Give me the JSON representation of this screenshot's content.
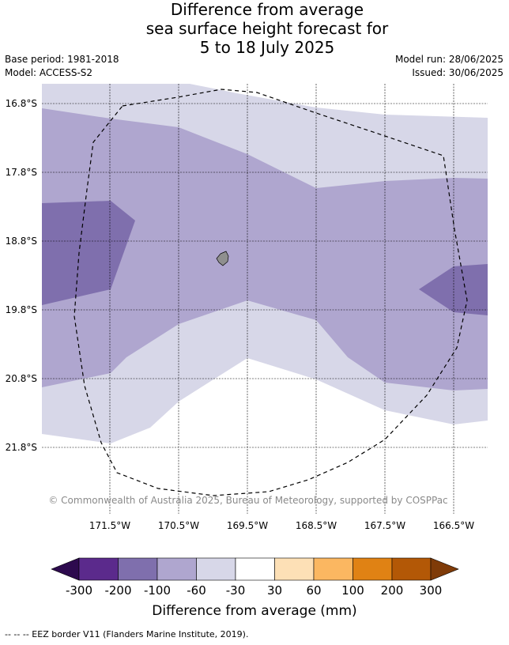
{
  "title": {
    "line1": "Difference from average",
    "line2": "sea surface height forecast for",
    "line3": "5 to 18 July 2025"
  },
  "meta": {
    "base_period": "Base period: 1981-2018",
    "model": "Model: ACCESS-S2",
    "model_run": "Model run: 28/06/2025",
    "issued": "Issued: 30/06/2025"
  },
  "map": {
    "lat_labels": [
      "16.8°S",
      "17.8°S",
      "18.8°S",
      "19.8°S",
      "20.8°S",
      "21.8°S"
    ],
    "lon_labels": [
      "171.5°W",
      "170.5°W",
      "169.5°W",
      "168.5°W",
      "167.5°W",
      "166.5°W"
    ],
    "copyright": "© Commonwealth of Australia 2025, Bureau of Meteorology, supported by COSPPac",
    "colors": {
      "m300": "#2d0a4e",
      "m200": "#5b2a8c",
      "m100": "#7f6fad",
      "m60": "#afa6cf",
      "m30": "#d7d7e8",
      "zero": "#ffffff",
      "p30": "#fde0b6",
      "p60": "#fbb761",
      "p100": "#e08214",
      "p200": "#b35806",
      "p300": "#7f3b08"
    }
  },
  "colorbar": {
    "ticks": [
      "-300",
      "-200",
      "-100",
      "-60",
      "-30",
      "30",
      "60",
      "100",
      "200",
      "300"
    ],
    "label": "Difference from average (mm)"
  },
  "footer": "--  --  -- EEZ border V11 (Flanders Marine Institute, 2019)."
}
